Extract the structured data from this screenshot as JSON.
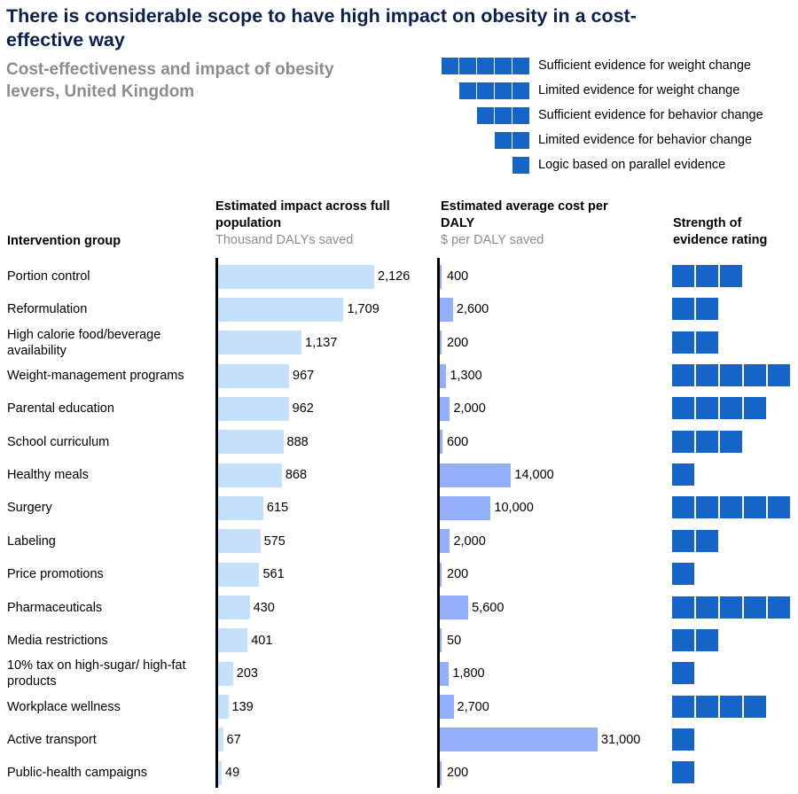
{
  "title": "There is considerable scope to have high impact on obesity in a cost-effective way",
  "subtitle": "Cost-effectiveness and impact of obesity levers, United Kingdom",
  "colors": {
    "title": "#0a2150",
    "subtitle": "#8c8c8c",
    "impact_bar": "#c5e0fa",
    "cost_bar": "#93aefb",
    "evidence": "#1565c8"
  },
  "legend": [
    {
      "squares": 5,
      "label": "Sufficient evidence for weight change"
    },
    {
      "squares": 4,
      "label": "Limited evidence for weight change"
    },
    {
      "squares": 3,
      "label": "Sufficient evidence for behavior change"
    },
    {
      "squares": 2,
      "label": "Limited evidence for behavior change"
    },
    {
      "squares": 1,
      "label": "Logic based on parallel evidence"
    }
  ],
  "headers": {
    "group": "Intervention group",
    "impact_title": "Estimated impact across full population",
    "impact_unit": "Thousand DALYs saved",
    "cost_title": "Estimated average cost per DALY",
    "cost_unit": "$ per DALY saved",
    "evidence_title": "Strength of evidence rating"
  },
  "chart_data": {
    "type": "bar",
    "title": "Cost-effectiveness and impact of obesity levers, United Kingdom",
    "categories": [
      "Portion control",
      "Reformulation",
      "High calorie food/beverage availability",
      "Weight-management programs",
      "Parental education",
      "School curriculum",
      "Healthy meals",
      "Surgery",
      "Labeling",
      "Price promotions",
      "Pharmaceuticals",
      "Media restrictions",
      "10% tax on high-sugar/ high-fat products",
      "Workplace wellness",
      "Active transport",
      "Public-health campaigns"
    ],
    "series": [
      {
        "name": "Estimated impact across full population (Thousand DALYs saved)",
        "values": [
          2126,
          1709,
          1137,
          967,
          962,
          888,
          868,
          615,
          575,
          561,
          430,
          401,
          203,
          139,
          67,
          49
        ],
        "labels": [
          "2,126",
          "1,709",
          "1,137",
          "967",
          "962",
          "888",
          "868",
          "615",
          "575",
          "561",
          "430",
          "401",
          "203",
          "139",
          "67",
          "49"
        ]
      },
      {
        "name": "Estimated average cost per DALY ($ per DALY saved)",
        "values": [
          400,
          2600,
          200,
          1300,
          2000,
          600,
          14000,
          10000,
          2000,
          200,
          5600,
          50,
          1800,
          2700,
          31000,
          200
        ],
        "labels": [
          "400",
          "2,600",
          "200",
          "1,300",
          "2,000",
          "600",
          "14,000",
          "10,000",
          "2,000",
          "200",
          "5,600",
          "50",
          "1,800",
          "2,700",
          "31,000",
          "200"
        ]
      },
      {
        "name": "Strength of evidence rating",
        "values": [
          3,
          2,
          2,
          5,
          4,
          3,
          1,
          5,
          2,
          1,
          5,
          2,
          1,
          4,
          1,
          1
        ]
      }
    ],
    "xlim_impact": [
      0,
      2126
    ],
    "xlim_cost": [
      0,
      31000
    ],
    "grid": false
  }
}
